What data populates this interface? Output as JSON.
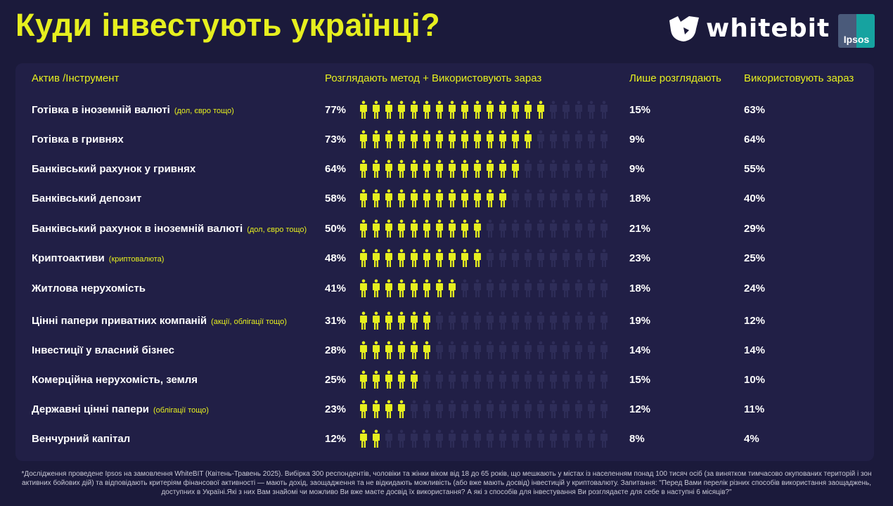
{
  "title": "Куди інвестують українці?",
  "logos": {
    "whitebit": "whitebit",
    "ipsos": "Ipsos"
  },
  "colors": {
    "accent": "#e6ef1f",
    "background": "#1b1a3b",
    "panel": "#211f46",
    "icon_empty": "#2e2d58"
  },
  "headers": {
    "asset": "Актив /Інструмент",
    "consider_plus_use": "Розглядають метод + Використовують зараз",
    "only_consider": "Лише розглядають",
    "use_now": "Використовують зараз"
  },
  "chart_data": {
    "type": "pictogram",
    "icons_total": 20,
    "rows": [
      {
        "label": "Готівка в іноземній валюті",
        "note": "(дол, євро тощо)",
        "total": "77%",
        "icons_filled": 15,
        "only_consider": "15%",
        "use_now": "63%"
      },
      {
        "label": "Готівка в гривнях",
        "note": "",
        "total": "73%",
        "icons_filled": 14,
        "only_consider": "9%",
        "use_now": "64%"
      },
      {
        "label": "Банківський рахунок у гривнях",
        "note": "",
        "total": "64%",
        "icons_filled": 13,
        "only_consider": "9%",
        "use_now": "55%"
      },
      {
        "label": "Банківський депозит",
        "note": "",
        "total": "58%",
        "icons_filled": 12,
        "only_consider": "18%",
        "use_now": "40%"
      },
      {
        "label": "Банківський рахунок в іноземній валюті",
        "note": "(дол, євро тощо)",
        "total": "50%",
        "icons_filled": 10,
        "only_consider": "21%",
        "use_now": "29%"
      },
      {
        "label": "Криптоактиви",
        "note": "(криптовалюта)",
        "total": "48%",
        "icons_filled": 10,
        "only_consider": "23%",
        "use_now": "25%"
      },
      {
        "label": "Житлова нерухомість",
        "note": "",
        "total": "41%",
        "icons_filled": 8,
        "only_consider": "18%",
        "use_now": "24%"
      },
      {
        "label": "Цінні папери приватних компаній",
        "note": "(акції, облігації тощо)",
        "total": "31%",
        "icons_filled": 6,
        "only_consider": "19%",
        "use_now": "12%"
      },
      {
        "label": "Інвестиції у власний бізнес",
        "note": "",
        "total": "28%",
        "icons_filled": 6,
        "only_consider": "14%",
        "use_now": "14%"
      },
      {
        "label": "Комерційна нерухомість, земля",
        "note": "",
        "total": "25%",
        "icons_filled": 5,
        "only_consider": "15%",
        "use_now": "10%"
      },
      {
        "label": "Державні цінні папери",
        "note": "(облігації тощо)",
        "total": "23%",
        "icons_filled": 4,
        "only_consider": "12%",
        "use_now": "11%"
      },
      {
        "label": "Венчурний капітал",
        "note": "",
        "total": "12%",
        "icons_filled": 2,
        "only_consider": "8%",
        "use_now": "4%"
      }
    ]
  },
  "footnote": "*Дослідження проведене Ipsos на замовлення WhiteBIT (Квітень-Травень 2025). Вибірка 300 респондентів, чоловіки та жінки віком від 18 до 65 років, що мешкають у містах із населенням понад 100 тисяч осіб (за винятком тимчасово окупованих територій і зон активних бойових дій) та відповідають критеріям фінансової активності — мають дохід, заощадження та не відкидають можливість (або вже мають досвід) інвестицій у криптовалюту. Запитання: \"Перед Вами перелік різних способів використання заощаджень, доступних в Україні.Які з них Вам знайомі чи можливо Ви вже маєте досвід їх використання? А які з способів для інвестування Ви розглядаєте для себе в наступні 6 місяців?\""
}
